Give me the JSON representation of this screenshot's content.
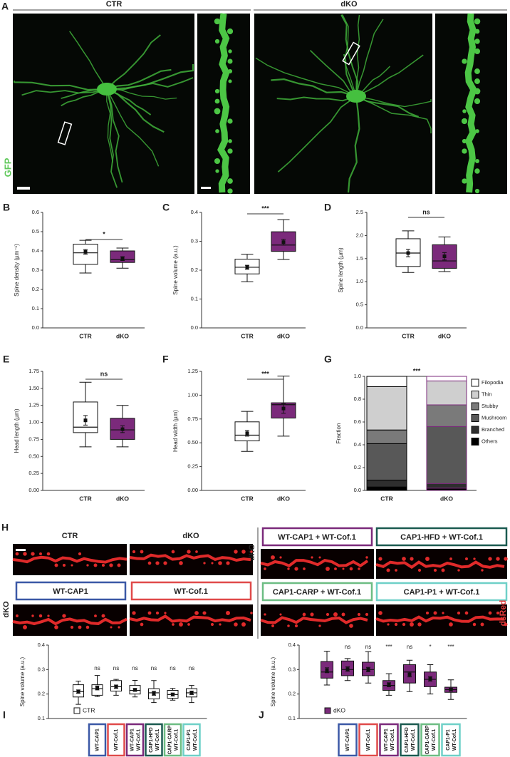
{
  "figure": {
    "panel_a": {
      "letter": "A",
      "labels": [
        "CTR",
        "dKO"
      ],
      "channel": "GFP"
    },
    "panel_h": {
      "letter": "H",
      "labels": [
        "CTR",
        "dKO",
        "WT-CAP1",
        "WT-Cof.1",
        "WT-CAP1 + WT-Cof.1",
        "CAP1-HFD + WT-Cof.1",
        "CAP1-CARP + WT-Cof.1",
        "CAP1-P1 + WT-Cof.1"
      ],
      "side_labels": [
        "dKO",
        "dKO"
      ],
      "channel": "dsRed"
    }
  },
  "chart_data": [
    {
      "type": "box",
      "panel": "B",
      "y_label": "Spine density (µm⁻¹)",
      "categories": [
        "CTR",
        "dKO"
      ],
      "colors": [
        "#ffffff",
        "#7b2a7b"
      ],
      "boxes": [
        {
          "low": 0.285,
          "q1": 0.33,
          "median": 0.39,
          "q3": 0.435,
          "high": 0.455,
          "mean": 0.395,
          "sem": 0.012
        },
        {
          "low": 0.31,
          "q1": 0.34,
          "median": 0.355,
          "q3": 0.4,
          "high": 0.415,
          "mean": 0.36,
          "sem": 0.01
        }
      ],
      "significance": "*",
      "ylim": [
        0,
        0.6
      ],
      "yticks": [
        {
          "value": 0,
          "label": "0.0"
        },
        0.1,
        0.2,
        0.3,
        0.4,
        0.5,
        0.6
      ]
    },
    {
      "type": "box",
      "panel": "C",
      "y_label": "Spine volume (a.u.)",
      "categories": [
        "CTR",
        "dKO"
      ],
      "colors": [
        "#ffffff",
        "#7b2a7b"
      ],
      "boxes": [
        {
          "low": 0.16,
          "q1": 0.187,
          "median": 0.21,
          "q3": 0.238,
          "high": 0.255,
          "mean": 0.21,
          "sem": 0.007
        },
        {
          "low": 0.237,
          "q1": 0.265,
          "median": 0.287,
          "q3": 0.333,
          "high": 0.375,
          "mean": 0.297,
          "sem": 0.01
        }
      ],
      "significance": "***",
      "ylim": [
        0,
        0.4
      ],
      "yticks": [
        {
          "value": 0,
          "label": "0.0"
        },
        0.1,
        0.2,
        0.3,
        0.4
      ]
    },
    {
      "type": "box",
      "panel": "D",
      "y_label": "Spine length (µm)",
      "categories": [
        "CTR",
        "dKO"
      ],
      "colors": [
        "#ffffff",
        "#7b2a7b"
      ],
      "boxes": [
        {
          "low": 1.2,
          "q1": 1.33,
          "median": 1.62,
          "q3": 1.93,
          "high": 2.1,
          "mean": 1.62,
          "sem": 0.08
        },
        {
          "low": 1.22,
          "q1": 1.29,
          "median": 1.45,
          "q3": 1.8,
          "high": 1.97,
          "mean": 1.55,
          "sem": 0.08
        }
      ],
      "significance": "ns",
      "ylim": [
        0,
        2.5
      ],
      "yticks": [
        {
          "value": 0,
          "label": "0.0"
        },
        0.5,
        {
          "value": 1,
          "label": "1.0"
        },
        1.5,
        {
          "value": 2,
          "label": "2.0"
        },
        2.5
      ]
    },
    {
      "type": "box",
      "panel": "E",
      "y_label": "Head length (µm)",
      "categories": [
        "CTR",
        "dKO"
      ],
      "colors": [
        "#ffffff",
        "#7b2a7b"
      ],
      "boxes": [
        {
          "low": 0.64,
          "q1": 0.85,
          "median": 0.93,
          "q3": 1.3,
          "high": 1.59,
          "mean": 1.03,
          "sem": 0.07
        },
        {
          "low": 0.64,
          "q1": 0.75,
          "median": 0.89,
          "q3": 1.06,
          "high": 1.25,
          "mean": 0.9,
          "sem": 0.05
        }
      ],
      "significance": "ns",
      "ylim": [
        0,
        1.75
      ],
      "yticks": [
        {
          "value": 0,
          "label": "0.00"
        },
        0.25,
        {
          "value": 0.5,
          "label": "0.50"
        },
        0.75,
        {
          "value": 1,
          "label": "1.00"
        },
        1.25,
        {
          "value": 1.5,
          "label": "1.50"
        },
        1.75
      ]
    },
    {
      "type": "box",
      "panel": "F",
      "y_label": "Head width (µm)",
      "categories": [
        "CTR",
        "dKO"
      ],
      "colors": [
        "#ffffff",
        "#7b2a7b"
      ],
      "boxes": [
        {
          "low": 0.41,
          "q1": 0.52,
          "median": 0.58,
          "q3": 0.72,
          "high": 0.83,
          "mean": 0.6,
          "sem": 0.03
        },
        {
          "low": 0.57,
          "q1": 0.76,
          "median": 0.9,
          "q3": 0.92,
          "high": 1.2,
          "mean": 0.86,
          "sem": 0.05
        }
      ],
      "significance": "***",
      "ylim": [
        0,
        1.25
      ],
      "yticks": [
        {
          "value": 0,
          "label": "0.00"
        },
        0.25,
        {
          "value": 0.5,
          "label": "0.50"
        },
        0.75,
        {
          "value": 1,
          "label": "1.00"
        },
        1.25
      ]
    },
    {
      "type": "stacked_bar",
      "panel": "G",
      "y_label": "Fraction",
      "categories": [
        "CTR",
        "dKO"
      ],
      "outline_colors": [
        "#000000",
        "#7b2a7b"
      ],
      "series": [
        {
          "name": "Others",
          "color": "#000000",
          "values": [
            0.03,
            0.02
          ]
        },
        {
          "name": "Branched",
          "color": "#2e2e2e",
          "values": [
            0.06,
            0.04
          ]
        },
        {
          "name": "Mushroom",
          "color": "#585858",
          "values": [
            0.32,
            0.5
          ]
        },
        {
          "name": "Stubby",
          "color": "#7a7a7a",
          "values": [
            0.12,
            0.19
          ]
        },
        {
          "name": "Thin",
          "color": "#cfcfcf",
          "values": [
            0.38,
            0.21
          ]
        },
        {
          "name": "Filopodia",
          "color": "#ffffff",
          "values": [
            0.09,
            0.04
          ]
        }
      ],
      "significance": "***",
      "ylim": [
        0,
        1
      ],
      "yticks": [
        {
          "value": 0,
          "label": "0.0"
        },
        0.2,
        0.4,
        0.6,
        0.8,
        {
          "value": 1,
          "label": "1.0"
        }
      ]
    },
    {
      "type": "box",
      "panel": "I",
      "y_label": "Spine volume (a.u.)",
      "categories": [
        null,
        [
          "WT-CAP1"
        ],
        [
          "WT-Cof.1"
        ],
        [
          "WT-CAP1",
          "WT-Cof.1"
        ],
        [
          "CAP1-HFD",
          "WT-Cof.1"
        ],
        [
          "CAP1-CARP",
          "WT-Cof.1"
        ],
        [
          "CAP1-P1",
          "WT-Cof.1"
        ]
      ],
      "category_colors": [
        null,
        "#3b58a6",
        "#e04a4a",
        "#7b2a7b",
        "#1a5a50",
        "#6dbd83",
        "#6fd0c8"
      ],
      "series": [
        {
          "name": "CTR",
          "color": "#ffffff",
          "boxes": [
            {
              "low": 0.158,
              "q1": 0.188,
              "median": 0.21,
              "q3": 0.238,
              "high": 0.253,
              "mean": 0.21,
              "sem": 0.007
            },
            {
              "low": 0.19,
              "q1": 0.195,
              "median": 0.222,
              "q3": 0.238,
              "high": 0.276,
              "mean": 0.225,
              "sem": 0.008
            },
            {
              "low": 0.195,
              "q1": 0.212,
              "median": 0.23,
              "q3": 0.255,
              "high": 0.26,
              "mean": 0.23,
              "sem": 0.007
            },
            {
              "low": 0.188,
              "q1": 0.2,
              "median": 0.215,
              "q3": 0.235,
              "high": 0.256,
              "mean": 0.217,
              "sem": 0.006
            },
            {
              "low": 0.165,
              "q1": 0.18,
              "median": 0.205,
              "q3": 0.222,
              "high": 0.255,
              "mean": 0.203,
              "sem": 0.008
            },
            {
              "low": 0.175,
              "q1": 0.183,
              "median": 0.198,
              "q3": 0.215,
              "high": 0.223,
              "mean": 0.198,
              "sem": 0.006
            },
            {
              "low": 0.165,
              "q1": 0.188,
              "median": 0.205,
              "q3": 0.222,
              "high": 0.235,
              "mean": 0.205,
              "sem": 0.007
            }
          ]
        }
      ],
      "significance": [
        null,
        "ns",
        "ns",
        "ns",
        "ns",
        "ns",
        "ns"
      ],
      "ylim": [
        0.1,
        0.4
      ],
      "yticks": [
        0.1,
        0.2,
        0.3,
        0.4
      ]
    },
    {
      "type": "box",
      "panel": "J",
      "y_label": "Spine volume (a.u.)",
      "categories": [
        null,
        [
          "WT-CAP1"
        ],
        [
          "WT-Cof.1"
        ],
        [
          "WT-CAP1",
          "WT-Cof.1"
        ],
        [
          "CAP1-HFD",
          "WT-Cof.1"
        ],
        [
          "CAP1-CARP",
          "WT-Cof.1"
        ],
        [
          "CAP1-P1",
          "WT-Cof.1"
        ]
      ],
      "category_colors": [
        null,
        "#3b58a6",
        "#e04a4a",
        "#7b2a7b",
        "#1a5a50",
        "#6dbd83",
        "#6fd0c8"
      ],
      "series": [
        {
          "name": "dKO",
          "color": "#7b2a7b",
          "boxes": [
            {
              "low": 0.237,
              "q1": 0.265,
              "median": 0.29,
              "q3": 0.333,
              "high": 0.375,
              "mean": 0.297,
              "sem": 0.01
            },
            {
              "low": 0.255,
              "q1": 0.275,
              "median": 0.3,
              "q3": 0.335,
              "high": 0.345,
              "mean": 0.302,
              "sem": 0.009
            },
            {
              "low": 0.245,
              "q1": 0.275,
              "median": 0.3,
              "q3": 0.33,
              "high": 0.373,
              "mean": 0.3,
              "sem": 0.009
            },
            {
              "low": 0.195,
              "q1": 0.215,
              "median": 0.235,
              "q3": 0.255,
              "high": 0.283,
              "mean": 0.238,
              "sem": 0.008
            },
            {
              "low": 0.21,
              "q1": 0.245,
              "median": 0.29,
              "q3": 0.32,
              "high": 0.338,
              "mean": 0.28,
              "sem": 0.01
            },
            {
              "low": 0.2,
              "q1": 0.23,
              "median": 0.26,
              "q3": 0.29,
              "high": 0.32,
              "mean": 0.262,
              "sem": 0.009
            },
            {
              "low": 0.178,
              "q1": 0.207,
              "median": 0.218,
              "q3": 0.228,
              "high": 0.258,
              "mean": 0.218,
              "sem": 0.006
            }
          ]
        }
      ],
      "significance": [
        null,
        "ns",
        "ns",
        "***",
        "ns",
        "*",
        "***"
      ],
      "ylim": [
        0.1,
        0.4
      ],
      "yticks": [
        0.1,
        0.2,
        0.3,
        0.4
      ]
    }
  ]
}
